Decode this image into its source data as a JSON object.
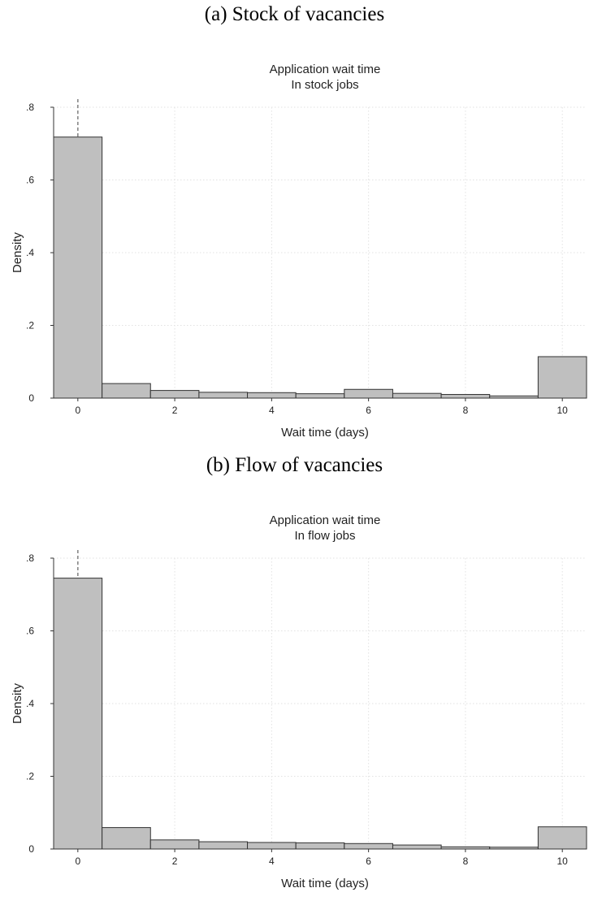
{
  "panels": [
    {
      "caption": "(a) Stock of vacancies",
      "chart_data": {
        "type": "bar",
        "subtype": "histogram",
        "title": [
          "Application wait time",
          "In stock jobs"
        ],
        "xlabel": "Wait time (days)",
        "ylabel": "Density",
        "categories": [
          0,
          1,
          2,
          3,
          4,
          5,
          6,
          7,
          8,
          9,
          10
        ],
        "values": [
          0.718,
          0.04,
          0.021,
          0.016,
          0.015,
          0.012,
          0.024,
          0.013,
          0.01,
          0.006,
          0.114
        ],
        "xlim": [
          -0.5,
          10.5
        ],
        "ylim": [
          0,
          0.8
        ],
        "xticks": [
          0,
          2,
          4,
          6,
          8,
          10
        ],
        "xtick_labels": [
          "0",
          "2",
          "4",
          "6",
          "8",
          "10"
        ],
        "yticks": [
          0,
          0.2,
          0.4,
          0.6,
          0.8
        ],
        "ytick_labels": [
          "0",
          ".2",
          ".4",
          ".6",
          ".8"
        ],
        "reference_line_x": 0,
        "grid": true,
        "bar_color": "#bfbfbf",
        "bar_edge_color": "#333333"
      }
    },
    {
      "caption": "(b) Flow of vacancies",
      "chart_data": {
        "type": "bar",
        "subtype": "histogram",
        "title": [
          "Application wait time",
          "In flow jobs"
        ],
        "xlabel": "Wait time (days)",
        "ylabel": "Density",
        "categories": [
          0,
          1,
          2,
          3,
          4,
          5,
          6,
          7,
          8,
          9,
          10
        ],
        "values": [
          0.745,
          0.059,
          0.025,
          0.02,
          0.018,
          0.017,
          0.015,
          0.011,
          0.006,
          0.005,
          0.061
        ],
        "xlim": [
          -0.5,
          10.5
        ],
        "ylim": [
          0,
          0.8
        ],
        "xticks": [
          0,
          2,
          4,
          6,
          8,
          10
        ],
        "xtick_labels": [
          "0",
          "2",
          "4",
          "6",
          "8",
          "10"
        ],
        "yticks": [
          0,
          0.2,
          0.4,
          0.6,
          0.8
        ],
        "ytick_labels": [
          "0",
          ".2",
          ".4",
          ".6",
          ".8"
        ],
        "reference_line_x": 0,
        "grid": true,
        "bar_color": "#bfbfbf",
        "bar_edge_color": "#333333"
      }
    }
  ]
}
